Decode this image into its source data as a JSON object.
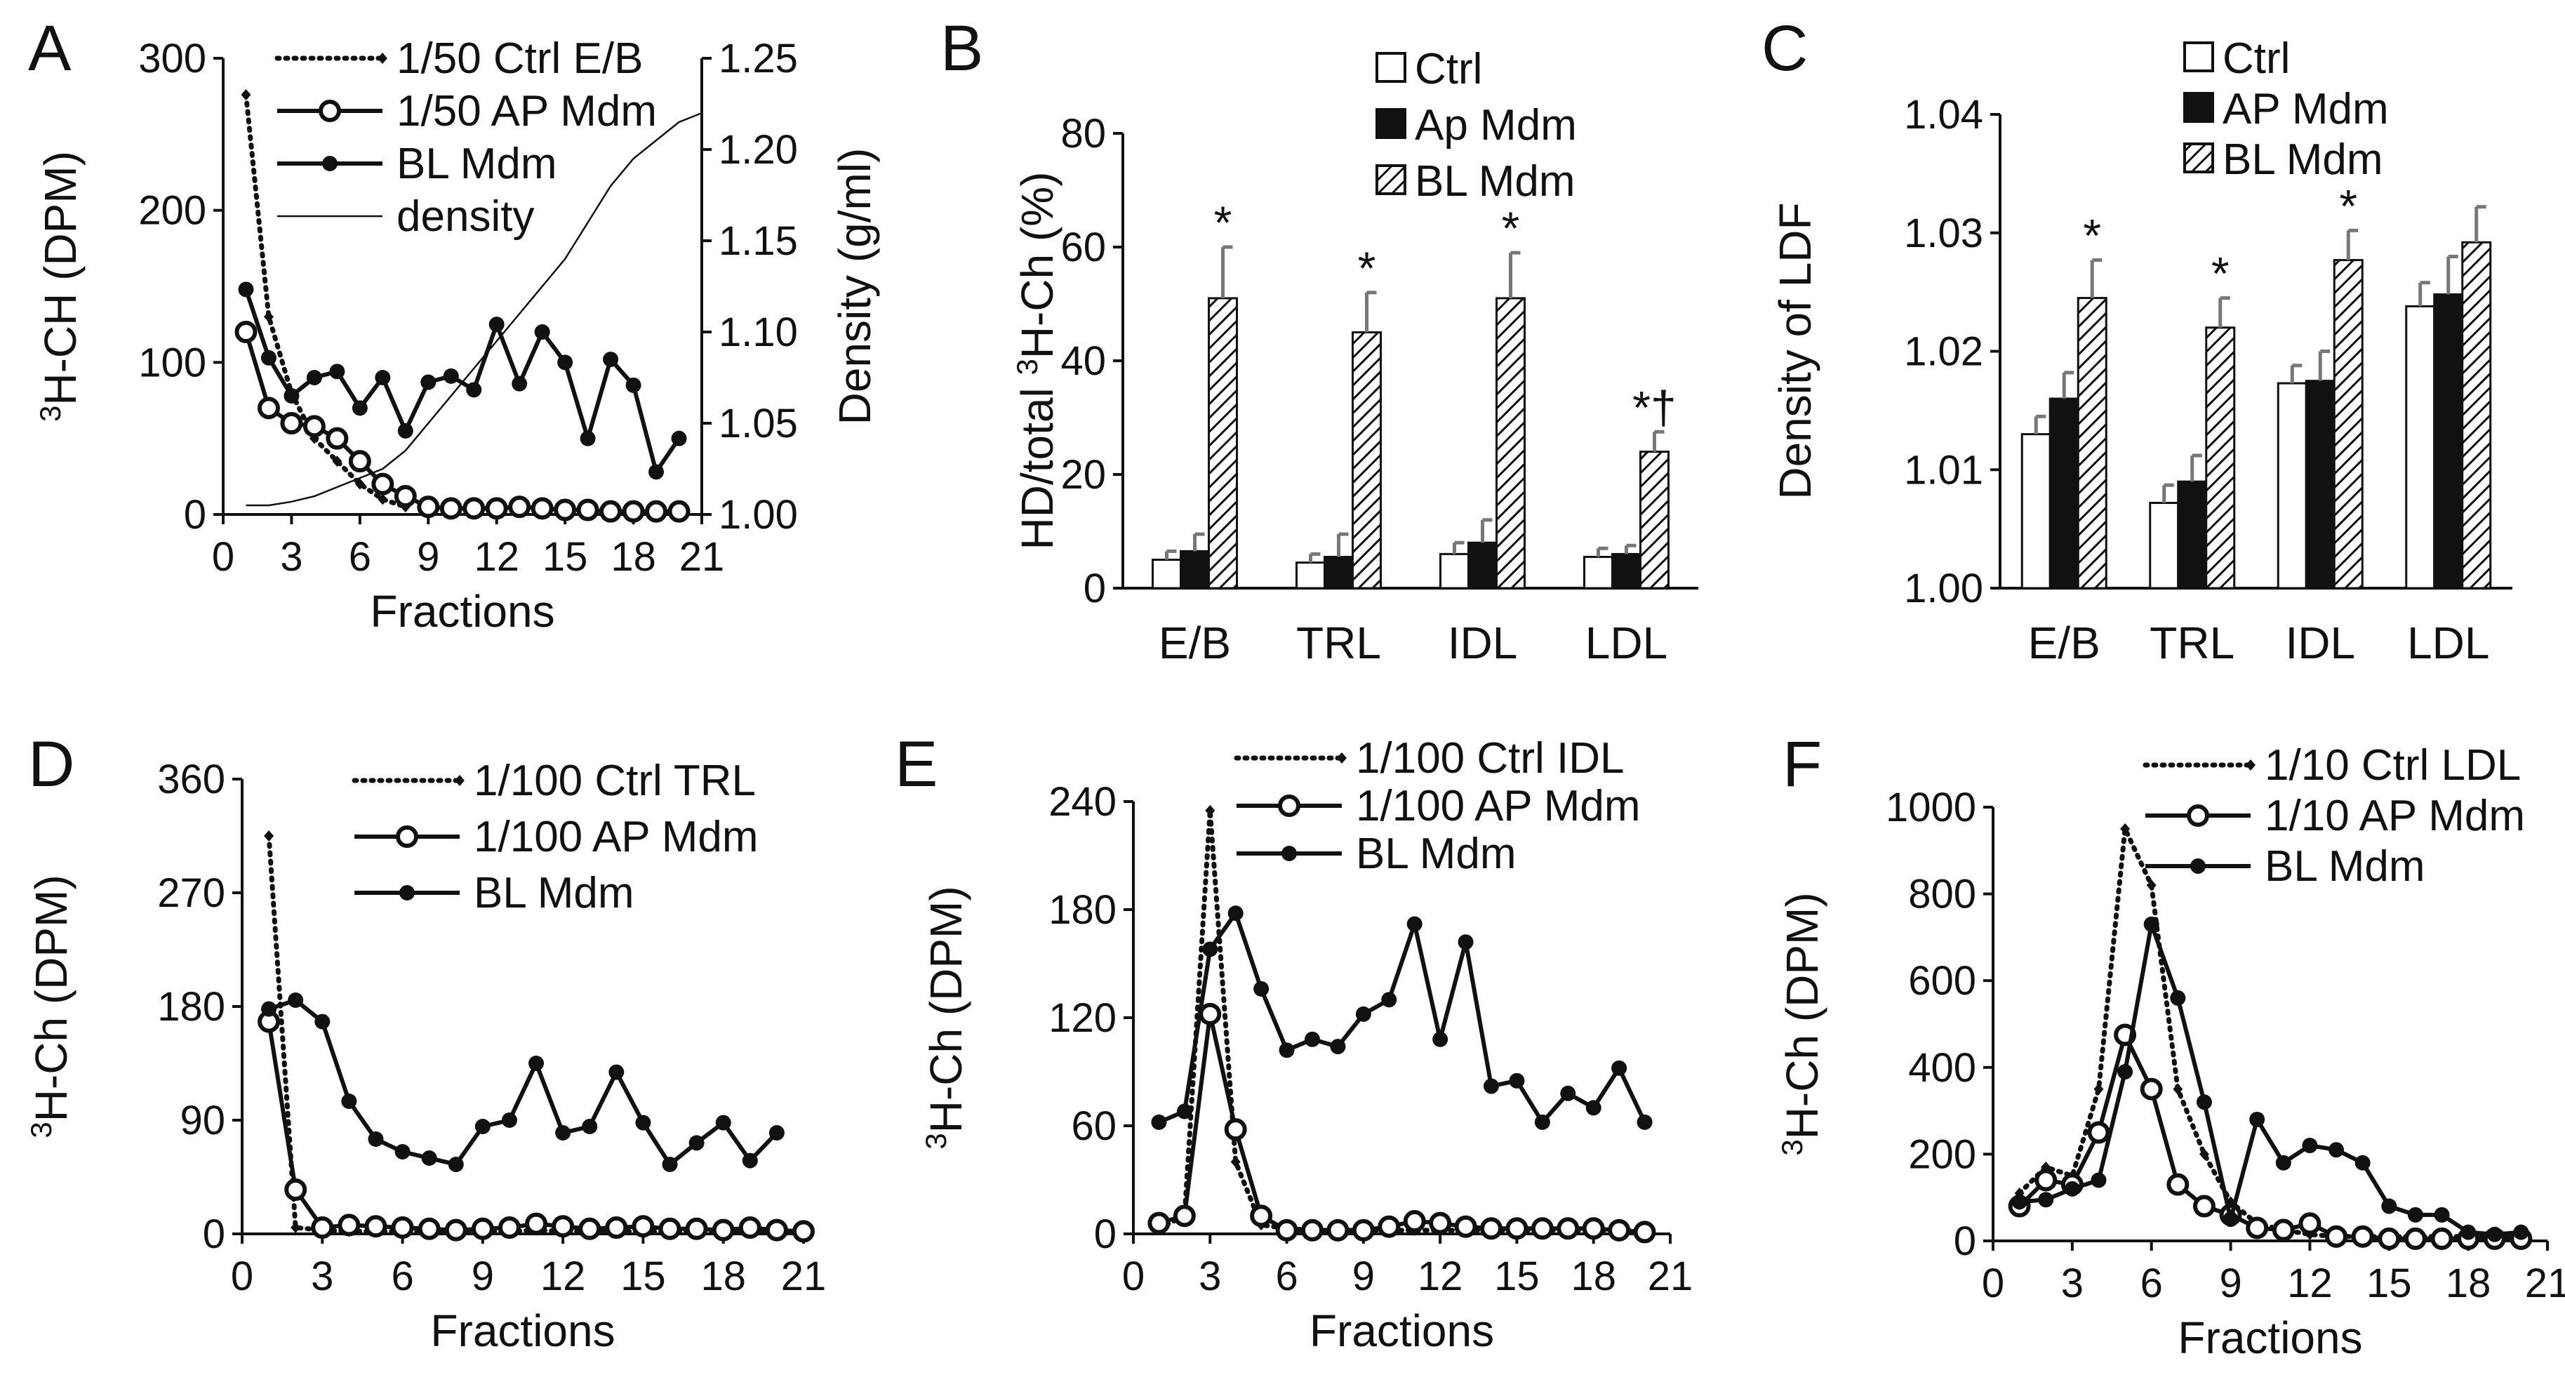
{
  "figure": {
    "panels": [
      "A",
      "B",
      "C",
      "D",
      "E",
      "F"
    ]
  },
  "chart_data": [
    {
      "panel": "A",
      "type": "line",
      "xlabel": "Fractions",
      "ylabel": "³H-CH (DPM)",
      "ylabel_sup": "3",
      "ylabel_rest": "H-CH (DPM)",
      "y2label": "Density (g/ml)",
      "xlim": [
        0,
        21
      ],
      "ylim": [
        0,
        300
      ],
      "y2lim": [
        1.0,
        1.25
      ],
      "xticks": [
        "0",
        "3",
        "6",
        "9",
        "12",
        "15",
        "18",
        "21"
      ],
      "yticks": [
        "0",
        "100",
        "200",
        "300"
      ],
      "y2ticks": [
        "1.00",
        "1.05",
        "1.10",
        "1.15",
        "1.20",
        "1.25"
      ],
      "legend": [
        "1/50 Ctrl E/B",
        "1/50 AP Mdm",
        "BL Mdm",
        "density"
      ],
      "series": [
        {
          "name": "1/50 Ctrl E/B",
          "style": "dotted-diamond",
          "x": [
            1,
            2,
            3,
            4,
            5,
            6,
            7,
            8
          ],
          "y": [
            276,
            130,
            80,
            50,
            35,
            20,
            10,
            5
          ]
        },
        {
          "name": "1/50 AP Mdm",
          "style": "open-circle",
          "x": [
            1,
            2,
            3,
            4,
            5,
            6,
            7,
            8,
            9,
            10,
            11,
            12,
            13,
            14,
            15,
            16,
            17,
            18,
            19,
            20
          ],
          "y": [
            120,
            70,
            60,
            58,
            50,
            35,
            20,
            12,
            5,
            4,
            4,
            4,
            5,
            4,
            3,
            3,
            2,
            2,
            2,
            2
          ]
        },
        {
          "name": "BL Mdm",
          "style": "filled-circle",
          "x": [
            1,
            2,
            3,
            4,
            5,
            6,
            7,
            8,
            9,
            10,
            11,
            12,
            13,
            14,
            15,
            16,
            17,
            18,
            19,
            20
          ],
          "y": [
            148,
            103,
            78,
            90,
            94,
            70,
            90,
            55,
            87,
            91,
            82,
            125,
            86,
            120,
            100,
            50,
            102,
            85,
            28,
            50
          ]
        },
        {
          "name": "density",
          "style": "thin-line",
          "axis": "right",
          "x": [
            1,
            2,
            3,
            4,
            5,
            6,
            7,
            8,
            9,
            10,
            11,
            12,
            13,
            14,
            15,
            16,
            17,
            18,
            19,
            20,
            21
          ],
          "y": [
            1.005,
            1.005,
            1.007,
            1.01,
            1.015,
            1.02,
            1.025,
            1.035,
            1.05,
            1.065,
            1.08,
            1.095,
            1.11,
            1.125,
            1.14,
            1.16,
            1.18,
            1.195,
            1.205,
            1.215,
            1.22
          ]
        }
      ]
    },
    {
      "panel": "B",
      "type": "bar",
      "ylabel": "HD/total ³H-Ch (%)",
      "ylabel_pre": "HD/total ",
      "ylabel_sup": "3",
      "ylabel_rest": "H-Ch (%)",
      "ylim": [
        0,
        80
      ],
      "yticks": [
        "0",
        "20",
        "40",
        "60",
        "80"
      ],
      "categories": [
        "E/B",
        "TRL",
        "IDL",
        "LDL"
      ],
      "legend": [
        "Ctrl",
        "Ap Mdm",
        "BL Mdm"
      ],
      "series": [
        {
          "name": "Ctrl",
          "values": [
            5,
            4.5,
            6,
            5.5
          ],
          "errors": [
            1.5,
            1.5,
            2,
            1.5
          ]
        },
        {
          "name": "Ap Mdm",
          "values": [
            6.5,
            5.5,
            8,
            6
          ],
          "errors": [
            3,
            4,
            4,
            1.5
          ]
        },
        {
          "name": "BL Mdm",
          "values": [
            51,
            45,
            51,
            24
          ],
          "errors": [
            9,
            7,
            8,
            3.5
          ]
        }
      ],
      "annotations": [
        "*",
        "*",
        "*",
        "*†"
      ]
    },
    {
      "panel": "C",
      "type": "bar",
      "ylabel": "Density of LDF",
      "ylim": [
        1.0,
        1.04
      ],
      "yticks": [
        "1.00",
        "1.01",
        "1.02",
        "1.03",
        "1.04"
      ],
      "categories": [
        "E/B",
        "TRL",
        "IDL",
        "LDL"
      ],
      "legend": [
        "Ctrl",
        "AP Mdm",
        "BL Mdm"
      ],
      "series": [
        {
          "name": "Ctrl",
          "values": [
            1.013,
            1.0072,
            1.0173,
            1.0238
          ],
          "errors": [
            0.0015,
            0.0015,
            0.0015,
            0.002
          ]
        },
        {
          "name": "AP Mdm",
          "values": [
            1.016,
            1.009,
            1.0175,
            1.0248
          ],
          "errors": [
            0.0022,
            0.0022,
            0.0025,
            0.0032
          ]
        },
        {
          "name": "BL Mdm",
          "values": [
            1.0245,
            1.022,
            1.0277,
            1.0292
          ],
          "errors": [
            0.0032,
            0.0025,
            0.0025,
            0.003
          ]
        }
      ],
      "annotations": [
        "*",
        "*",
        "*",
        ""
      ]
    },
    {
      "panel": "D",
      "type": "line",
      "xlabel": "Fractions",
      "ylabel": "³H-Ch (DPM)",
      "ylabel_sup": "3",
      "ylabel_rest": "H-Ch (DPM)",
      "xlim": [
        0,
        21
      ],
      "ylim": [
        0,
        360
      ],
      "xticks": [
        "0",
        "3",
        "6",
        "9",
        "12",
        "15",
        "18",
        "21"
      ],
      "yticks": [
        "0",
        "90",
        "180",
        "270",
        "360"
      ],
      "legend": [
        "1/100 Ctrl TRL",
        "1/100 AP Mdm",
        "BL Mdm"
      ],
      "series": [
        {
          "name": "1/100 Ctrl TRL",
          "style": "dotted-diamond",
          "x": [
            1,
            2,
            3,
            4,
            5,
            6,
            7,
            8,
            9,
            10,
            11,
            12,
            13,
            14,
            15,
            16,
            17,
            18,
            19,
            20,
            21
          ],
          "y": [
            315,
            5,
            3,
            2,
            2,
            2,
            2,
            2,
            2,
            2,
            3,
            2,
            2,
            2,
            2,
            2,
            2,
            2,
            2,
            2,
            2
          ]
        },
        {
          "name": "1/100 AP Mdm",
          "style": "open-circle",
          "x": [
            1,
            2,
            3,
            4,
            5,
            6,
            7,
            8,
            9,
            10,
            11,
            12,
            13,
            14,
            15,
            16,
            17,
            18,
            19,
            20,
            21
          ],
          "y": [
            168,
            35,
            5,
            7,
            6,
            5,
            4,
            3,
            4,
            5,
            8,
            6,
            4,
            5,
            6,
            4,
            4,
            3,
            5,
            3,
            2
          ]
        },
        {
          "name": "BL Mdm",
          "style": "filled-circle",
          "x": [
            1,
            2,
            3,
            4,
            5,
            6,
            7,
            8,
            9,
            10,
            11,
            12,
            13,
            14,
            15,
            16,
            17,
            18,
            19,
            20
          ],
          "y": [
            178,
            185,
            168,
            105,
            75,
            65,
            60,
            55,
            85,
            90,
            135,
            80,
            85,
            128,
            88,
            55,
            72,
            88,
            58,
            80
          ]
        }
      ]
    },
    {
      "panel": "E",
      "type": "line",
      "xlabel": "Fractions",
      "ylabel": "³H-Ch (DPM)",
      "ylabel_sup": "3",
      "ylabel_rest": "H-Ch (DPM)",
      "xlim": [
        0,
        21
      ],
      "ylim": [
        0,
        240
      ],
      "xticks": [
        "0",
        "3",
        "6",
        "9",
        "12",
        "15",
        "18",
        "21"
      ],
      "yticks": [
        "0",
        "60",
        "120",
        "180",
        "240"
      ],
      "legend": [
        "1/100 Ctrl IDL",
        "1/100 AP Mdm",
        "BL Mdm"
      ],
      "series": [
        {
          "name": "1/100 Ctrl IDL",
          "style": "dotted-diamond",
          "x": [
            1,
            2,
            3,
            4,
            5,
            6,
            7,
            8,
            9,
            10,
            11,
            12,
            13,
            14,
            15,
            16,
            17,
            18,
            19,
            20
          ],
          "y": [
            3,
            10,
            235,
            40,
            5,
            3,
            2,
            2,
            2,
            2,
            2,
            2,
            2,
            2,
            2,
            2,
            2,
            2,
            2,
            2
          ]
        },
        {
          "name": "1/100 AP Mdm",
          "style": "open-circle",
          "x": [
            1,
            2,
            3,
            4,
            5,
            6,
            7,
            8,
            9,
            10,
            11,
            12,
            13,
            14,
            15,
            16,
            17,
            18,
            19,
            20
          ],
          "y": [
            6,
            10,
            122,
            58,
            10,
            2,
            2,
            2,
            2,
            4,
            7,
            6,
            4,
            3,
            3,
            3,
            3,
            3,
            2,
            1
          ]
        },
        {
          "name": "BL Mdm",
          "style": "filled-circle",
          "x": [
            1,
            2,
            3,
            4,
            5,
            6,
            7,
            8,
            9,
            10,
            11,
            12,
            13,
            14,
            15,
            16,
            17,
            18,
            19,
            20
          ],
          "y": [
            62,
            68,
            158,
            178,
            136,
            102,
            108,
            104,
            122,
            130,
            172,
            108,
            162,
            82,
            85,
            62,
            78,
            70,
            92,
            62
          ]
        }
      ]
    },
    {
      "panel": "F",
      "type": "line",
      "xlabel": "Fractions",
      "ylabel": "³H-Ch (DPM)",
      "ylabel_sup": "3",
      "ylabel_rest": "H-Ch (DPM)",
      "xlim": [
        0,
        21
      ],
      "ylim": [
        0,
        1000
      ],
      "xticks": [
        "0",
        "3",
        "6",
        "9",
        "12",
        "15",
        "18",
        "21"
      ],
      "yticks": [
        "0",
        "200",
        "400",
        "600",
        "800",
        "1000"
      ],
      "legend": [
        "1/10 Ctrl LDL",
        "1/10 AP Mdm",
        "BL Mdm"
      ],
      "series": [
        {
          "name": "1/10 Ctrl LDL",
          "style": "dotted-diamond",
          "x": [
            1,
            2,
            3,
            4,
            5,
            6,
            7,
            8,
            9,
            10,
            11,
            12,
            13,
            14,
            15,
            16,
            17,
            18,
            19,
            20
          ],
          "y": [
            110,
            170,
            150,
            350,
            950,
            820,
            350,
            200,
            90,
            40,
            25,
            15,
            10,
            10,
            10,
            10,
            10,
            10,
            10,
            10
          ]
        },
        {
          "name": "1/10 AP Mdm",
          "style": "open-circle",
          "x": [
            1,
            2,
            3,
            4,
            5,
            6,
            7,
            8,
            9,
            10,
            11,
            12,
            13,
            14,
            15,
            16,
            17,
            18,
            19,
            20
          ],
          "y": [
            80,
            140,
            130,
            250,
            475,
            350,
            130,
            80,
            60,
            30,
            25,
            40,
            10,
            10,
            5,
            5,
            5,
            5,
            5,
            5
          ]
        },
        {
          "name": "BL Mdm",
          "style": "filled-circle",
          "x": [
            1,
            2,
            3,
            4,
            5,
            6,
            7,
            8,
            9,
            10,
            11,
            12,
            13,
            14,
            15,
            16,
            17,
            18,
            19,
            20
          ],
          "y": [
            90,
            95,
            120,
            140,
            390,
            730,
            560,
            320,
            50,
            280,
            180,
            220,
            210,
            180,
            80,
            60,
            60,
            20,
            15,
            20
          ]
        }
      ]
    }
  ]
}
